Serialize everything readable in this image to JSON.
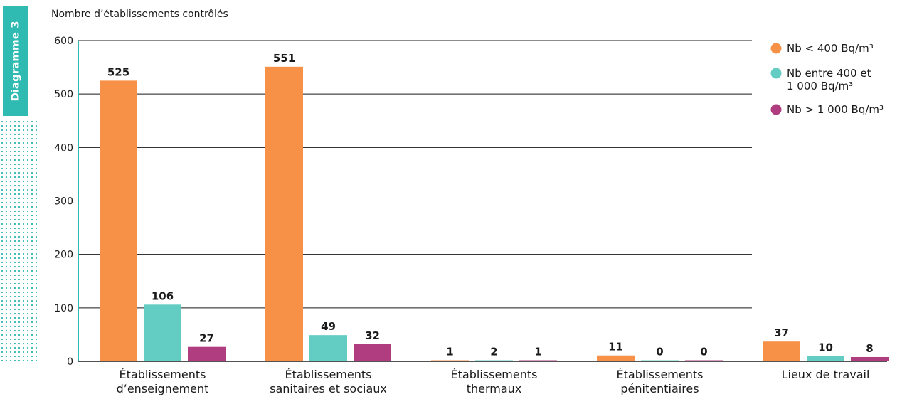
{
  "side_label": "Diagramme 3",
  "chart_data": {
    "type": "bar",
    "title": "",
    "ylabel": "Nombre d’établissements contrôlés",
    "xlabel": "",
    "ylim": [
      0,
      600
    ],
    "yticks": [
      0,
      100,
      200,
      300,
      400,
      500,
      600
    ],
    "grid": true,
    "legend_position": "top-right",
    "categories": [
      [
        "Établissements",
        "d’enseignement"
      ],
      [
        "Établissements",
        "sanitaires et sociaux"
      ],
      [
        "Établissements",
        "thermaux"
      ],
      [
        "Établissements",
        "pénitentiaires"
      ],
      [
        "Lieux de travail"
      ]
    ],
    "series": [
      {
        "name": "Nb < 400 Bq/m³",
        "label_lines": [
          "Nb < 400 Bq/m³"
        ],
        "color": "#f79148",
        "values": [
          525,
          551,
          1,
          11,
          37
        ]
      },
      {
        "name": "Nb entre 400 et 1 000 Bq/m³",
        "label_lines": [
          "Nb entre 400 et",
          "1 000 Bq/m³"
        ],
        "color": "#63ccc3",
        "values": [
          106,
          49,
          2,
          0,
          10
        ]
      },
      {
        "name": "Nb > 1 000 Bq/m³",
        "label_lines": [
          "Nb > 1 000 Bq/m³"
        ],
        "color": "#b03d80",
        "values": [
          27,
          32,
          1,
          0,
          8
        ]
      }
    ]
  }
}
